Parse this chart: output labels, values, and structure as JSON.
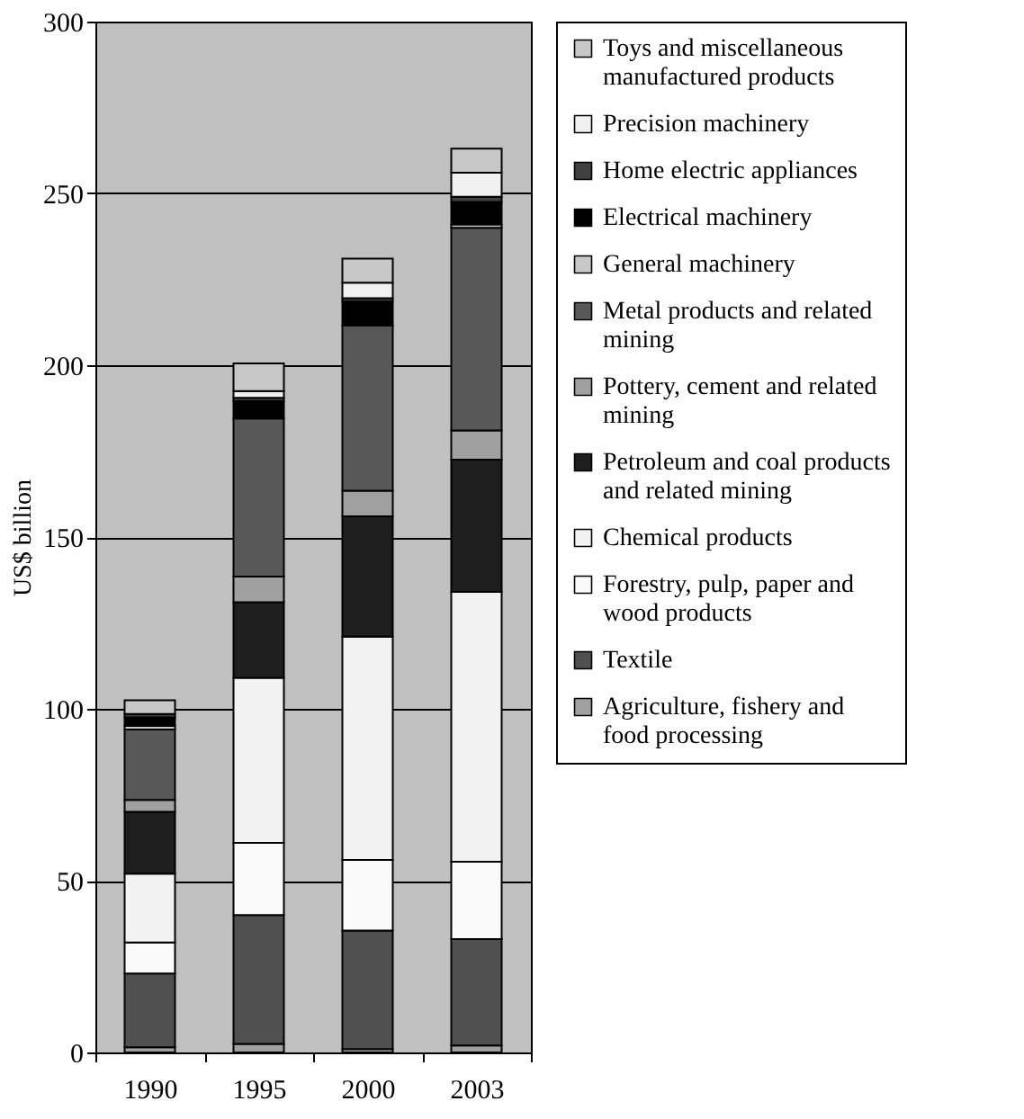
{
  "chart_data": {
    "type": "bar",
    "stacked": true,
    "ylabel": "US$ billion",
    "categories": [
      "1990",
      "1995",
      "2000",
      "2003"
    ],
    "ylim": [
      0,
      300
    ],
    "yticks": [
      0,
      50,
      100,
      150,
      200,
      250,
      300
    ],
    "grid": "y",
    "legend": "right",
    "series": [
      {
        "name": "Agriculture, fishery and food processing",
        "color": "#a0a0a0",
        "values": [
          1.5,
          2.5,
          1,
          2
        ]
      },
      {
        "name": "Textile",
        "color": "#505050",
        "values": [
          21.5,
          37.5,
          34.5,
          31
        ]
      },
      {
        "name": "Forestry, pulp, paper and wood products",
        "color": "#fafafa",
        "values": [
          9,
          21,
          20.5,
          22.5
        ]
      },
      {
        "name": "Chemical products",
        "color": "#f2f2f2",
        "values": [
          20,
          48,
          65,
          78.5
        ]
      },
      {
        "name": "Petroleum and coal products and related mining",
        "color": "#1e1e1e",
        "values": [
          18,
          22,
          35,
          38.5
        ]
      },
      {
        "name": "Pottery, cement and related mining",
        "color": "#a0a0a0",
        "values": [
          3.5,
          7.5,
          7.5,
          8.5
        ]
      },
      {
        "name": "Metal products and related mining",
        "color": "#585858",
        "values": [
          20.5,
          46,
          48,
          59
        ]
      },
      {
        "name": "General machinery",
        "color": "#c8c8c8",
        "values": [
          1,
          null,
          null,
          1
        ]
      },
      {
        "name": "Electrical machinery",
        "color": "#000000",
        "values": [
          2.5,
          5,
          7,
          6.5
        ]
      },
      {
        "name": "Home electric appliances",
        "color": "#404040",
        "values": [
          1,
          1,
          1,
          1.5
        ]
      },
      {
        "name": "Precision machinery",
        "color": "#f0f0f0",
        "values": [
          null,
          2,
          4.5,
          7
        ]
      },
      {
        "name": "Toys and miscellaneous manufactured products",
        "color": "#c8c8c8",
        "values": [
          4,
          8,
          7,
          7
        ]
      }
    ]
  }
}
